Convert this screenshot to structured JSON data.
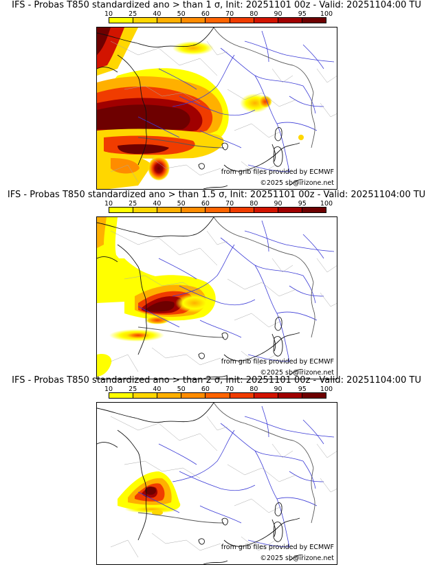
{
  "colorbar": {
    "ticks": [
      "10",
      "25",
      "40",
      "50",
      "60",
      "70",
      "80",
      "90",
      "95",
      "100"
    ],
    "colors": [
      "#ffff00",
      "#ffd700",
      "#ffb000",
      "#ff8c00",
      "#ff6400",
      "#f03c00",
      "#d21400",
      "#a00000",
      "#6e0000"
    ]
  },
  "panels": [
    {
      "title": "IFS - Probas T850  standardized ano > than 1 σ, Init: 20251101 00z - Valid: 20251104:00 TU",
      "credit_source": "from grib files provided by ECMWF",
      "credit_copyright": "©2025 sb@irizone.net"
    },
    {
      "title": "IFS - Probas T850  standardized ano > than 1.5 σ, Init: 20251101 00z - Valid: 20251104:00 TU",
      "credit_source": "from grib files provided by ECMWF",
      "credit_copyright": "©2025 sb@irizone.net"
    },
    {
      "title": "IFS - Probas T850  standardized ano > than 2 σ, Init: 20251101 00z - Valid: 20251104:00 TU",
      "credit_source": "from grib files provided by ECMWF",
      "credit_copyright": "©2025 sb@irizone.net"
    }
  ]
}
